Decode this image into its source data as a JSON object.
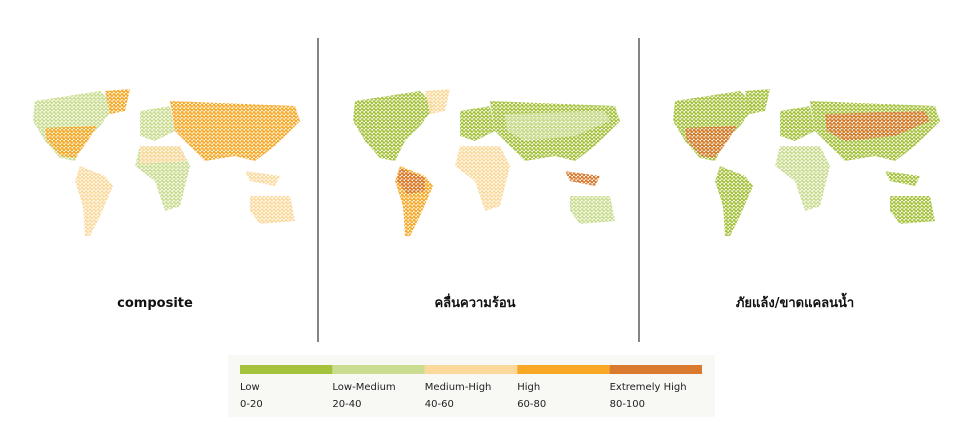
{
  "panels": [
    {
      "label": "composite"
    },
    {
      "label": "คลื่นความร้อน"
    },
    {
      "label": "ภัยแล้ง/ขาดแคลนน้ำ"
    }
  ],
  "legend": [
    {
      "name": "Low",
      "range": "0-20",
      "color": "#a5c23c"
    },
    {
      "name": "Low-Medium",
      "range": "20-40",
      "color": "#c9dc8f"
    },
    {
      "name": "Medium-High",
      "range": "40-60",
      "color": "#fad99b"
    },
    {
      "name": "High",
      "range": "60-80",
      "color": "#f8a825"
    },
    {
      "name": "Extremely High",
      "range": "80-100",
      "color": "#d97a2e"
    }
  ]
}
